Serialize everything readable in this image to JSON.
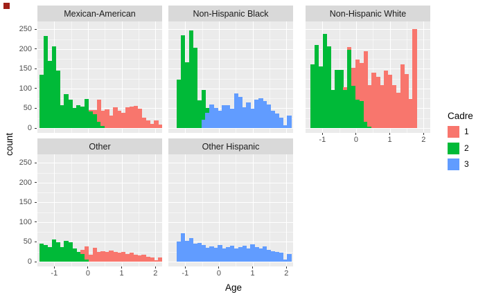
{
  "corner_marker": {
    "color": "#a02019",
    "visible": true
  },
  "chart_data": {
    "type": "bar",
    "subtype": "faceted-stacked-histogram",
    "title": "",
    "xlabel": "Age",
    "ylabel": "count",
    "x_domain": [
      -1.5,
      2.2
    ],
    "ylim": [
      0,
      250
    ],
    "x_ticks": [
      -1,
      0,
      1,
      2
    ],
    "x_tick_labels": [
      "-1",
      "0",
      "1",
      "2"
    ],
    "x_minor": [
      -0.5,
      0.5,
      1.5
    ],
    "y_ticks": [
      0,
      50,
      100,
      150,
      200,
      250
    ],
    "y_tick_labels": [
      "0",
      "50",
      "100",
      "150",
      "200",
      "250"
    ],
    "y_minor": [
      25,
      75,
      125,
      175,
      225
    ],
    "bin_width_age": 0.125,
    "grid": true,
    "panel_bg": "#ebebeb",
    "strip_bg": "#d9d9d9",
    "gridline_color": "#ffffff",
    "cadre_colors": {
      "1": "#F8766D",
      "2": "#00BA38",
      "3": "#619CFF"
    },
    "legend": {
      "title": "Cadre",
      "position": "right",
      "entries": [
        {
          "label": "1",
          "cadre": "1",
          "color": "#F8766D"
        },
        {
          "label": "2",
          "cadre": "2",
          "color": "#00BA38"
        },
        {
          "label": "3",
          "cadre": "3",
          "color": "#619CFF"
        }
      ]
    },
    "facets": [
      {
        "label": "Mexican-American",
        "row": 0,
        "col": 0,
        "start_age": -1.44,
        "bars": [
          [
            [
              "2",
              135
            ]
          ],
          [
            [
              "2",
              233
            ]
          ],
          [
            [
              "2",
              170
            ]
          ],
          [
            [
              "2",
              207
            ]
          ],
          [
            [
              "2",
              146
            ]
          ],
          [
            [
              "2",
              57
            ]
          ],
          [
            [
              "2",
              86
            ]
          ],
          [
            [
              "2",
              71
            ]
          ],
          [
            [
              "2",
              50
            ]
          ],
          [
            [
              "2",
              57
            ]
          ],
          [
            [
              "2",
              54
            ]
          ],
          [
            [
              "2",
              73
            ]
          ],
          [
            [
              "2",
              42
            ],
            [
              "1",
              4
            ]
          ],
          [
            [
              "2",
              35
            ],
            [
              "1",
              10
            ]
          ],
          [
            [
              "2",
              15
            ],
            [
              "1",
              57
            ]
          ],
          [
            [
              "2",
              5
            ],
            [
              "1",
              38
            ]
          ],
          [
            [
              "1",
              47
            ]
          ],
          [
            [
              "1",
              31
            ]
          ],
          [
            [
              "1",
              53
            ]
          ],
          [
            [
              "1",
              43
            ]
          ],
          [
            [
              "1",
              39
            ]
          ],
          [
            [
              "1",
              53
            ]
          ],
          [
            [
              "1",
              55
            ]
          ],
          [
            [
              "1",
              56
            ]
          ],
          [
            [
              "1",
              49
            ]
          ],
          [
            [
              "1",
              26
            ]
          ],
          [
            [
              "1",
              20
            ]
          ],
          [
            [
              "1",
              11
            ]
          ],
          [
            [
              "1",
              20
            ]
          ],
          [
            [
              "1",
              8
            ]
          ]
        ]
      },
      {
        "label": "Non-Hispanic Black",
        "row": 0,
        "col": 1,
        "start_age": -1.25,
        "bars": [
          [
            [
              "2",
              122
            ]
          ],
          [
            [
              "2",
              235
            ]
          ],
          [
            [
              "2",
              166
            ]
          ],
          [
            [
              "2",
              247
            ]
          ],
          [
            [
              "2",
              203
            ]
          ],
          [
            [
              "2",
              70
            ]
          ],
          [
            [
              "3",
              21
            ],
            [
              "2",
              76
            ]
          ],
          [
            [
              "3",
              38
            ],
            [
              "2",
              12
            ]
          ],
          [
            [
              "3",
              59
            ]
          ],
          [
            [
              "3",
              51
            ]
          ],
          [
            [
              "3",
              44
            ]
          ],
          [
            [
              "3",
              58
            ]
          ],
          [
            [
              "3",
              58
            ]
          ],
          [
            [
              "3",
              49
            ]
          ],
          [
            [
              "3",
              88
            ]
          ],
          [
            [
              "3",
              79
            ]
          ],
          [
            [
              "3",
              52
            ]
          ],
          [
            [
              "3",
              64
            ]
          ],
          [
            [
              "3",
              49
            ]
          ],
          [
            [
              "3",
              71
            ]
          ],
          [
            [
              "3",
              75
            ]
          ],
          [
            [
              "3",
              68
            ]
          ],
          [
            [
              "3",
              59
            ]
          ],
          [
            [
              "3",
              44
            ]
          ],
          [
            [
              "3",
              36
            ]
          ],
          [
            [
              "3",
              27
            ]
          ],
          [
            [
              "3",
              7
            ]
          ],
          [
            [
              "3",
              32
            ]
          ]
        ]
      },
      {
        "label": "Non-Hispanic White",
        "row": 0,
        "col": 2,
        "start_age": -1.36,
        "bars": [
          [
            [
              "2",
              162
            ]
          ],
          [
            [
              "2",
              211
            ]
          ],
          [
            [
              "2",
              156
            ]
          ],
          [
            [
              "2",
              238
            ]
          ],
          [
            [
              "2",
              206
            ]
          ],
          [
            [
              "2",
              97
            ]
          ],
          [
            [
              "2",
              147
            ]
          ],
          [
            [
              "2",
              147
            ]
          ],
          [
            [
              "2",
              97
            ],
            [
              "1",
              7
            ]
          ],
          [
            [
              "2",
              198
            ],
            [
              "1",
              7
            ]
          ],
          [
            [
              "2",
              107
            ],
            [
              "1",
              46
            ]
          ],
          [
            [
              "2",
              71
            ],
            [
              "1",
              103
            ]
          ],
          [
            [
              "2",
              68
            ],
            [
              "1",
              96
            ]
          ],
          [
            [
              "2",
              15
            ],
            [
              "1",
              180
            ]
          ],
          [
            [
              "2",
              3
            ],
            [
              "1",
              106
            ]
          ],
          [
            [
              "1",
              140
            ]
          ],
          [
            [
              "1",
              130
            ]
          ],
          [
            [
              "1",
              109
            ]
          ],
          [
            [
              "1",
              145
            ]
          ],
          [
            [
              "1",
              135
            ]
          ],
          [
            [
              "1",
              109
            ]
          ],
          [
            [
              "1",
              89
            ]
          ],
          [
            [
              "1",
              162
            ]
          ],
          [
            [
              "1",
              137
            ]
          ],
          [
            [
              "1",
              74
            ]
          ],
          [
            [
              "1",
              250
            ]
          ]
        ]
      },
      {
        "label": "Other",
        "row": 1,
        "col": 0,
        "start_age": -1.44,
        "bars": [
          [
            [
              "2",
              45
            ]
          ],
          [
            [
              "2",
              42
            ]
          ],
          [
            [
              "2",
              36
            ]
          ],
          [
            [
              "2",
              56
            ]
          ],
          [
            [
              "2",
              49
            ]
          ],
          [
            [
              "2",
              36
            ]
          ],
          [
            [
              "2",
              52
            ]
          ],
          [
            [
              "2",
              49
            ]
          ],
          [
            [
              "2",
              33
            ]
          ],
          [
            [
              "2",
              24
            ]
          ],
          [
            [
              "2",
              20
            ],
            [
              "1",
              10
            ]
          ],
          [
            [
              "2",
              5
            ],
            [
              "1",
              34
            ]
          ],
          [
            [
              "1",
              18
            ]
          ],
          [
            [
              "1",
              35
            ]
          ],
          [
            [
              "1",
              25
            ]
          ],
          [
            [
              "1",
              27
            ]
          ],
          [
            [
              "1",
              25
            ]
          ],
          [
            [
              "1",
              28
            ]
          ],
          [
            [
              "1",
              25
            ]
          ],
          [
            [
              "1",
              22
            ]
          ],
          [
            [
              "1",
              25
            ]
          ],
          [
            [
              "1",
              20
            ]
          ],
          [
            [
              "1",
              22
            ]
          ],
          [
            [
              "1",
              18
            ]
          ],
          [
            [
              "1",
              15
            ]
          ],
          [
            [
              "1",
              18
            ]
          ],
          [
            [
              "1",
              12
            ]
          ],
          [
            [
              "1",
              10
            ]
          ],
          [
            [
              "1",
              4
            ]
          ],
          [
            [
              "1",
              10
            ]
          ]
        ]
      },
      {
        "label": "Other Hispanic",
        "row": 1,
        "col": 1,
        "start_age": -1.25,
        "bars": [
          [
            [
              "3",
              50
            ]
          ],
          [
            [
              "3",
              72
            ]
          ],
          [
            [
              "3",
              52
            ]
          ],
          [
            [
              "3",
              60
            ]
          ],
          [
            [
              "3",
              45
            ]
          ],
          [
            [
              "3",
              48
            ]
          ],
          [
            [
              "3",
              42
            ]
          ],
          [
            [
              "3",
              35
            ]
          ],
          [
            [
              "3",
              39
            ]
          ],
          [
            [
              "3",
              35
            ]
          ],
          [
            [
              "3",
              42
            ]
          ],
          [
            [
              "3",
              33
            ]
          ],
          [
            [
              "3",
              37
            ]
          ],
          [
            [
              "3",
              40
            ]
          ],
          [
            [
              "3",
              33
            ]
          ],
          [
            [
              "3",
              36
            ]
          ],
          [
            [
              "3",
              40
            ]
          ],
          [
            [
              "3",
              33
            ]
          ],
          [
            [
              "3",
              43
            ]
          ],
          [
            [
              "3",
              37
            ]
          ],
          [
            [
              "3",
              33
            ]
          ],
          [
            [
              "3",
              39
            ]
          ],
          [
            [
              "3",
              30
            ]
          ],
          [
            [
              "3",
              27
            ]
          ],
          [
            [
              "3",
              25
            ]
          ],
          [
            [
              "3",
              23
            ]
          ],
          [
            [
              "3",
              6
            ]
          ],
          [
            [
              "3",
              19
            ]
          ]
        ]
      }
    ]
  }
}
